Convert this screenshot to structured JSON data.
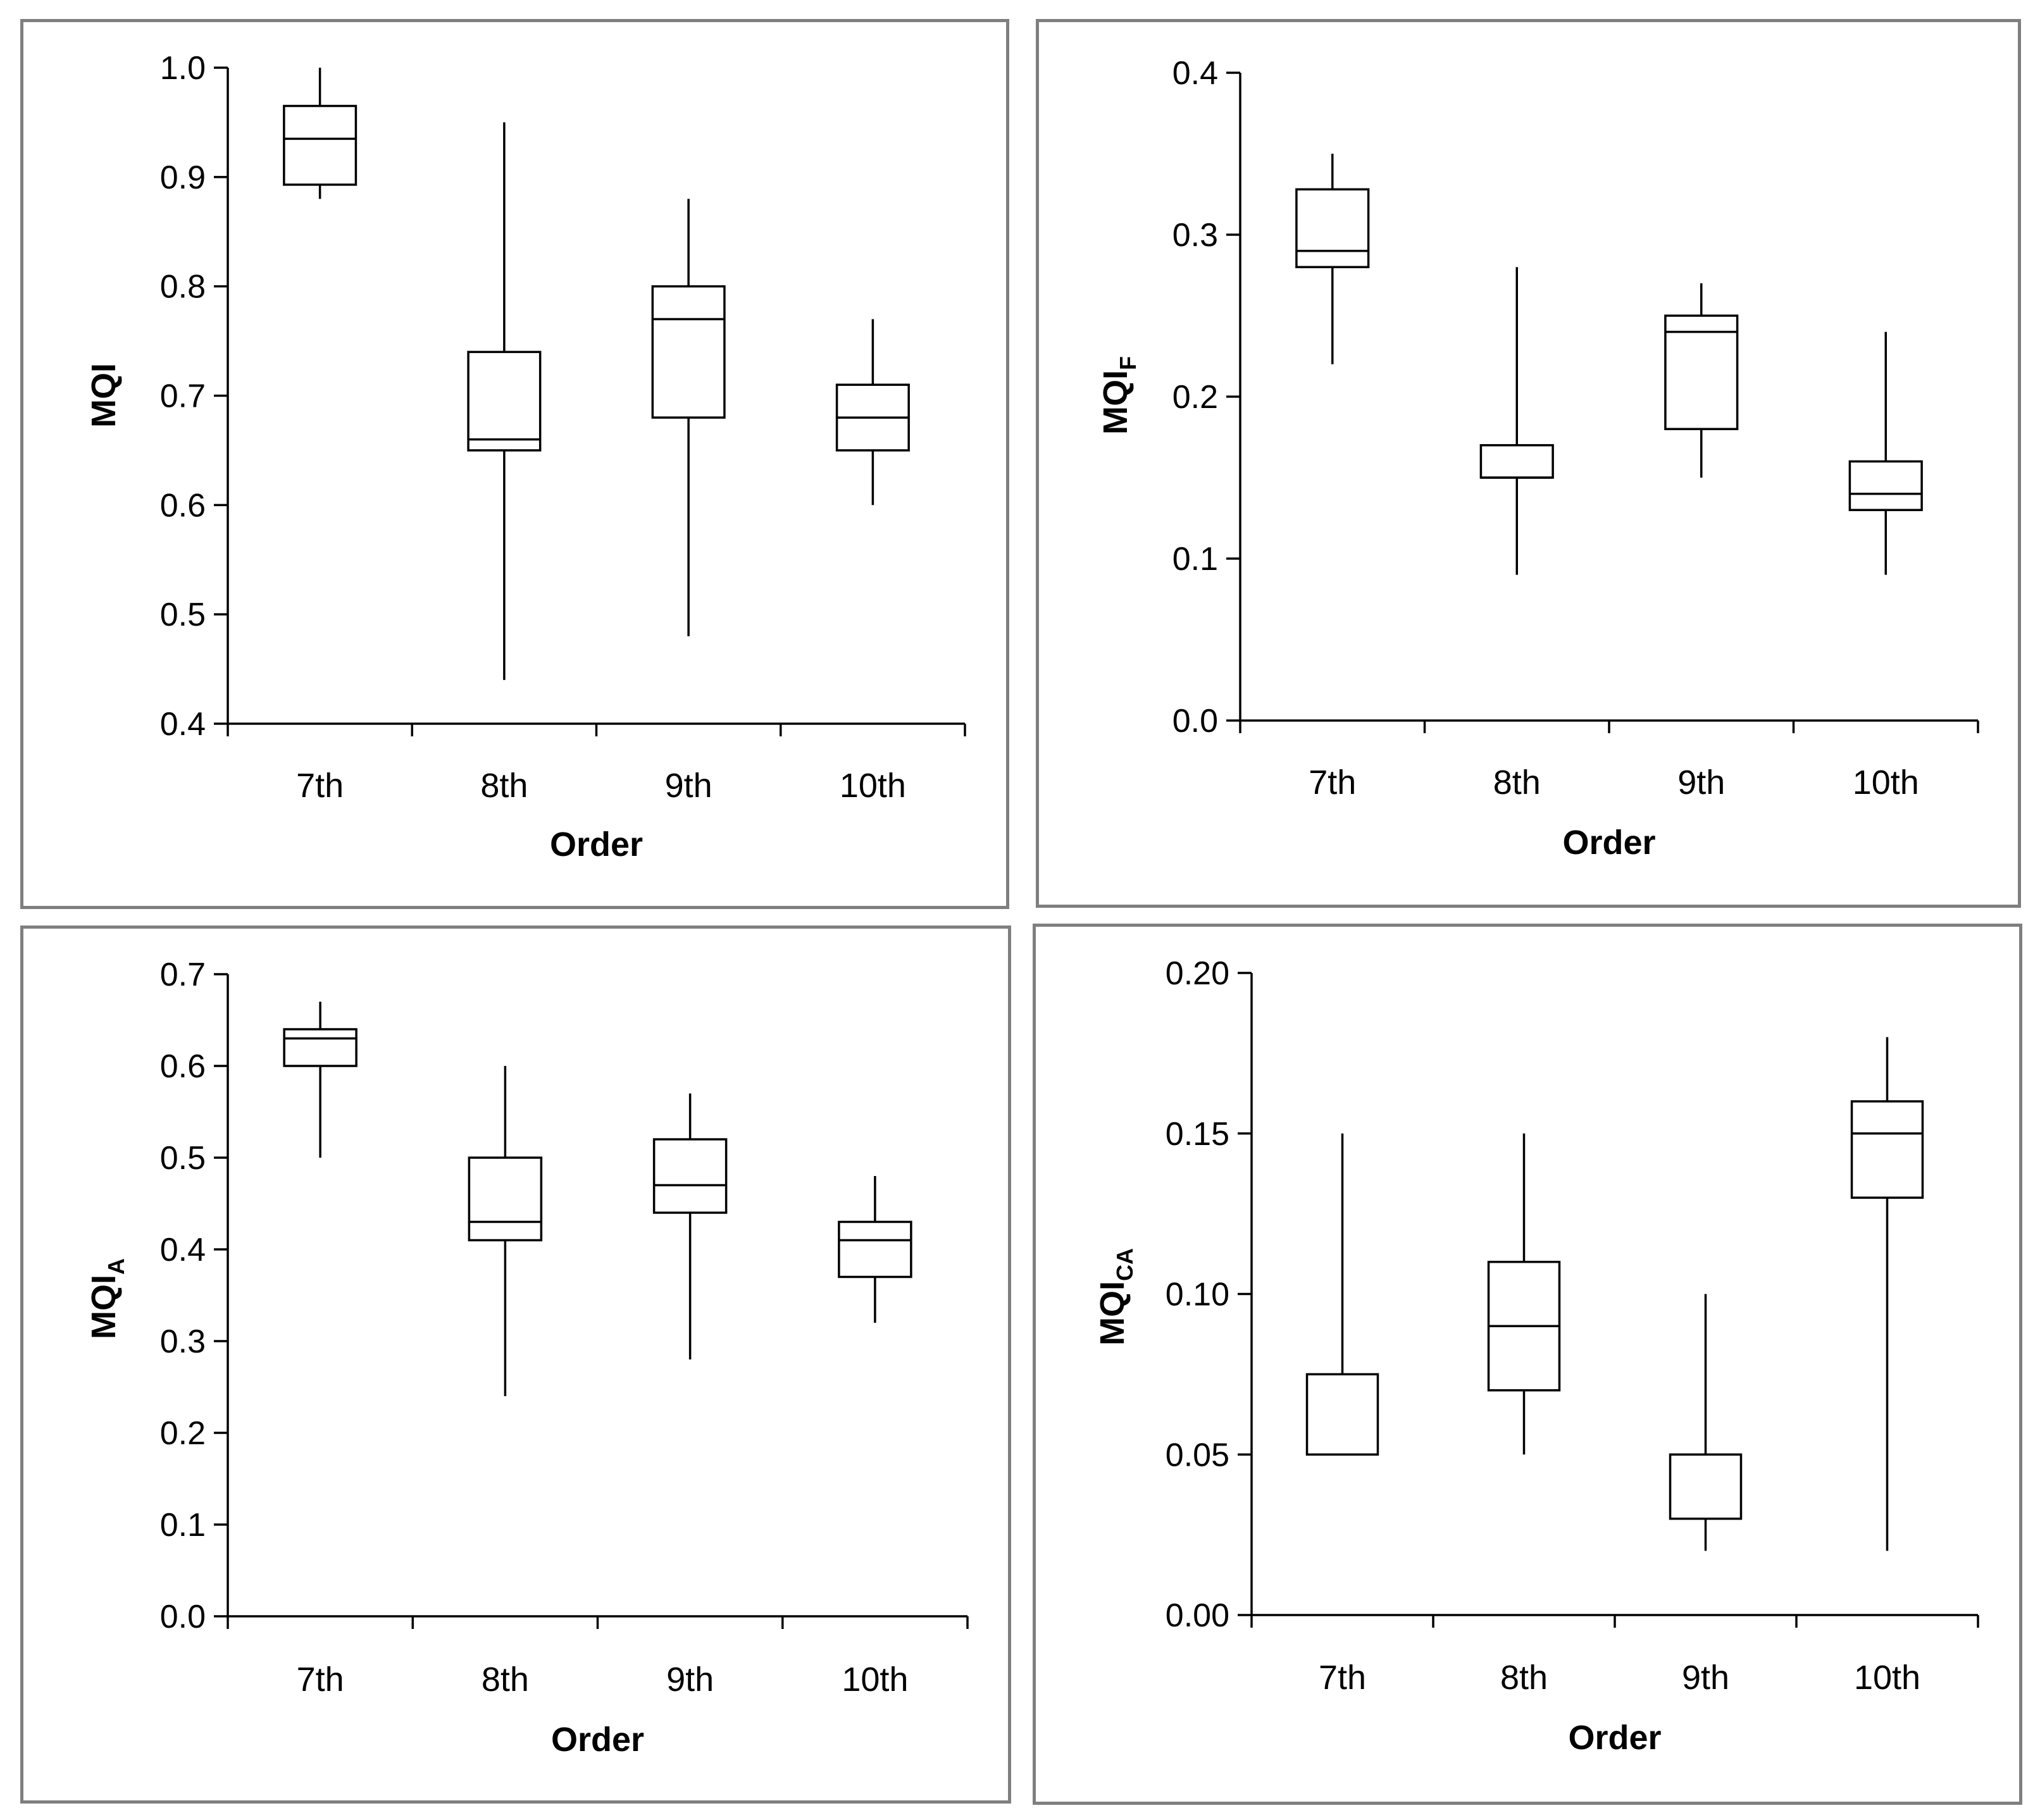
{
  "chart_data": [
    {
      "type": "box",
      "id": "mqi",
      "ylabel": "MQI",
      "ylabel_sub": "",
      "xlabel": "Order",
      "categories": [
        "7th",
        "8th",
        "9th",
        "10th"
      ],
      "ylim": [
        0.4,
        1.0
      ],
      "yticks": [
        "0.4",
        "0.5",
        "0.6",
        "0.7",
        "0.8",
        "0.9",
        "1.0"
      ],
      "boxes": [
        {
          "min": 0.88,
          "q1": 0.893,
          "median": 0.935,
          "q3": 0.965,
          "max": 1.0
        },
        {
          "min": 0.44,
          "q1": 0.65,
          "median": 0.66,
          "q3": 0.74,
          "max": 0.95
        },
        {
          "min": 0.48,
          "q1": 0.68,
          "median": 0.77,
          "q3": 0.8,
          "max": 0.88
        },
        {
          "min": 0.6,
          "q1": 0.65,
          "median": 0.68,
          "q3": 0.71,
          "max": 0.77
        }
      ]
    },
    {
      "type": "box",
      "id": "mqif",
      "ylabel": "MQI",
      "ylabel_sub": "F",
      "xlabel": "Order",
      "categories": [
        "7th",
        "8th",
        "9th",
        "10th"
      ],
      "ylim": [
        0.0,
        0.4
      ],
      "yticks": [
        "0.0",
        "0.1",
        "0.2",
        "0.3",
        "0.4"
      ],
      "boxes": [
        {
          "min": 0.22,
          "q1": 0.28,
          "median": 0.29,
          "q3": 0.328,
          "max": 0.35
        },
        {
          "min": 0.09,
          "q1": 0.15,
          "median": 0.15,
          "q3": 0.17,
          "max": 0.28
        },
        {
          "min": 0.15,
          "q1": 0.18,
          "median": 0.24,
          "q3": 0.25,
          "max": 0.27
        },
        {
          "min": 0.09,
          "q1": 0.13,
          "median": 0.14,
          "q3": 0.16,
          "max": 0.24
        }
      ]
    },
    {
      "type": "box",
      "id": "mqia",
      "ylabel": "MQI",
      "ylabel_sub": "A",
      "xlabel": "Order",
      "categories": [
        "7th",
        "8th",
        "9th",
        "10th"
      ],
      "ylim": [
        0.0,
        0.7
      ],
      "yticks": [
        "0.0",
        "0.1",
        "0.2",
        "0.3",
        "0.4",
        "0.5",
        "0.6",
        "0.7"
      ],
      "boxes": [
        {
          "min": 0.5,
          "q1": 0.6,
          "median": 0.63,
          "q3": 0.64,
          "max": 0.67
        },
        {
          "min": 0.24,
          "q1": 0.41,
          "median": 0.43,
          "q3": 0.5,
          "max": 0.6
        },
        {
          "min": 0.28,
          "q1": 0.44,
          "median": 0.47,
          "q3": 0.52,
          "max": 0.57
        },
        {
          "min": 0.32,
          "q1": 0.37,
          "median": 0.41,
          "q3": 0.43,
          "max": 0.48
        }
      ]
    },
    {
      "type": "box",
      "id": "mqica",
      "ylabel": "MQI",
      "ylabel_sub": "CA",
      "xlabel": "Order",
      "categories": [
        "7th",
        "8th",
        "9th",
        "10th"
      ],
      "ylim": [
        0.0,
        0.2
      ],
      "yticks": [
        "0.00",
        "0.05",
        "0.10",
        "0.15",
        "0.20"
      ],
      "boxes": [
        {
          "min": 0.05,
          "q1": 0.05,
          "median": 0.05,
          "q3": 0.075,
          "max": 0.15
        },
        {
          "min": 0.05,
          "q1": 0.07,
          "median": 0.09,
          "q3": 0.11,
          "max": 0.15
        },
        {
          "min": 0.02,
          "q1": 0.03,
          "median": 0.03,
          "q3": 0.05,
          "max": 0.1
        },
        {
          "min": 0.02,
          "q1": 0.13,
          "median": 0.15,
          "q3": 0.16,
          "max": 0.18
        }
      ]
    }
  ]
}
